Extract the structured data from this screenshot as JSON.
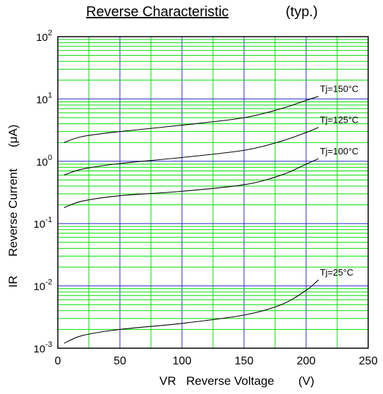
{
  "chart_data": {
    "type": "line",
    "title": "Reverse Characteristic",
    "subtitle": "(typ.)",
    "xlabel_symbol": "VR",
    "xlabel": "Reverse Voltage",
    "xunit": "(V)",
    "ylabel_symbol": "IR",
    "ylabel": "Reverse Current",
    "yunit": "(μA)",
    "xlim": [
      0,
      250
    ],
    "ylim": [
      0.001,
      100
    ],
    "yscale": "log",
    "grid": true,
    "x_ticks": [
      0,
      50,
      100,
      150,
      200,
      250
    ],
    "x_tick_labels": [
      "0",
      "50",
      "100",
      "150",
      "200",
      "250"
    ],
    "y_ticks": [
      {
        "value": 0.001,
        "base": "10",
        "exp": "-3"
      },
      {
        "value": 0.01,
        "base": "10",
        "exp": "-2"
      },
      {
        "value": 0.1,
        "base": "10",
        "exp": "-1"
      },
      {
        "value": 1,
        "base": "10",
        "exp": "0"
      },
      {
        "value": 10,
        "base": "10",
        "exp": "1"
      },
      {
        "value": 100,
        "base": "10",
        "exp": "2"
      }
    ],
    "colors": {
      "minor_grid": "#00dd00",
      "major_grid": "#2a2ad0",
      "curve": "#000000"
    },
    "series": [
      {
        "name": "Tj=150°C",
        "x": [
          5,
          20,
          50,
          100,
          150,
          180,
          200,
          210
        ],
        "y": [
          2.0,
          2.5,
          3.0,
          3.8,
          5.0,
          7.0,
          9.5,
          11.0
        ]
      },
      {
        "name": "Tj=125°C",
        "x": [
          5,
          20,
          50,
          100,
          150,
          180,
          200,
          210
        ],
        "y": [
          0.6,
          0.75,
          0.92,
          1.15,
          1.5,
          2.1,
          2.9,
          3.5
        ]
      },
      {
        "name": "Tj=100°C",
        "x": [
          5,
          20,
          50,
          100,
          150,
          180,
          200,
          210
        ],
        "y": [
          0.18,
          0.23,
          0.28,
          0.33,
          0.42,
          0.6,
          0.9,
          1.1
        ]
      },
      {
        "name": "Tj=25°C",
        "x": [
          5,
          20,
          50,
          100,
          150,
          180,
          200,
          210
        ],
        "y": [
          0.0012,
          0.0016,
          0.002,
          0.0025,
          0.0034,
          0.005,
          0.0085,
          0.0125
        ]
      }
    ]
  }
}
